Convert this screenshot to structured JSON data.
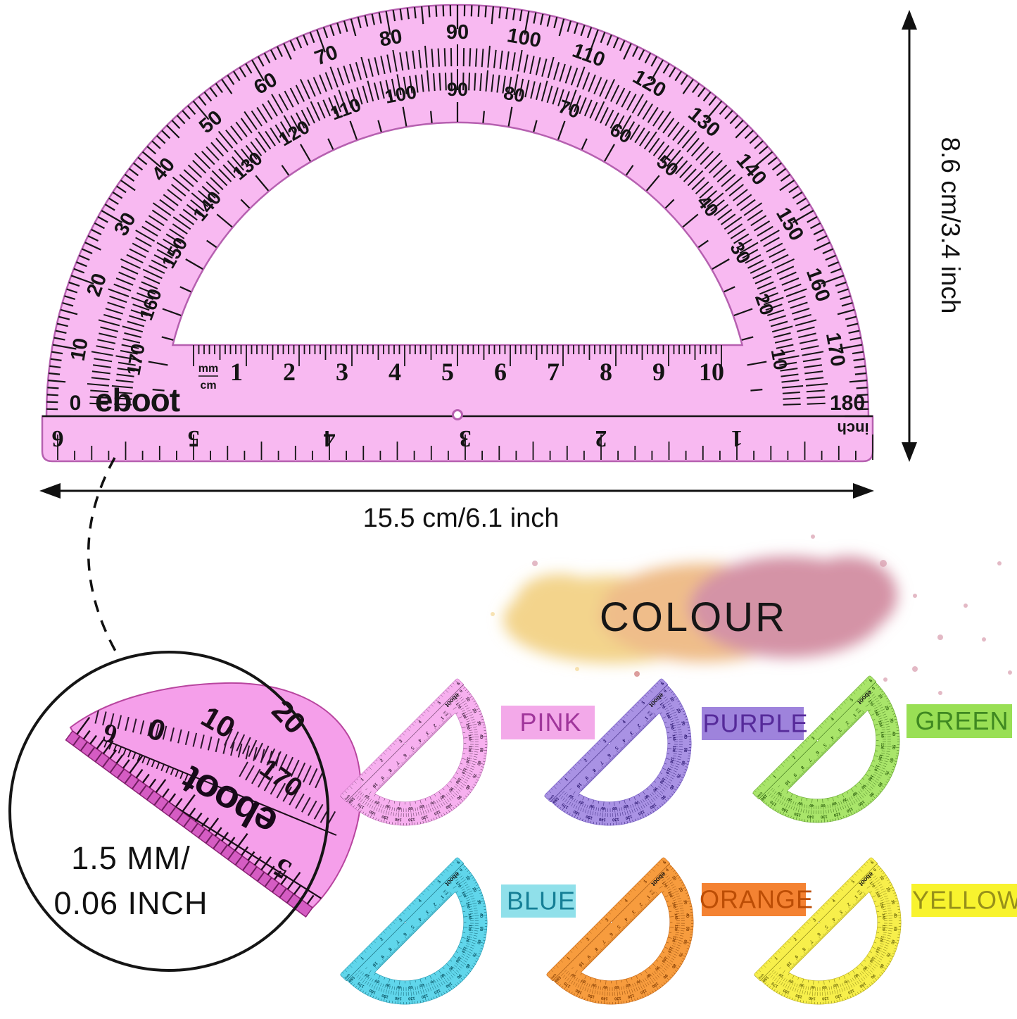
{
  "main_protractor": {
    "brand": "eboot",
    "body_color": "#f7b4f0",
    "edge_color": "#b660b0",
    "ink_color": "#141414",
    "outer_scale_labels": [
      10,
      20,
      30,
      40,
      50,
      60,
      70,
      80,
      90,
      100,
      110,
      120,
      130,
      140,
      150,
      160,
      170
    ],
    "inner_scale_labels": [
      170,
      160,
      150,
      140,
      130,
      120,
      110,
      100,
      90,
      80,
      70,
      60,
      50,
      40,
      30,
      20,
      10
    ],
    "baseline_left_label": "0",
    "baseline_right_label": "180",
    "ruler_unit_top": "mm",
    "ruler_unit_bottom": "cm",
    "cm_labels": [
      "1",
      "2",
      "3",
      "4",
      "5",
      "6",
      "7",
      "8",
      "9",
      "10"
    ],
    "inch_unit_label": "inch",
    "inch_labels": [
      "1",
      "2",
      "3",
      "4",
      "5",
      "6"
    ]
  },
  "dimensions": {
    "height_label": "8.6 cm/3.4 inch",
    "width_label": "15.5 cm/6.1 inch"
  },
  "inset": {
    "line1": "1.5 MM/",
    "line2": "0.06 INCH",
    "brand": "eboot",
    "degree_labels": [
      "0",
      "10",
      "20",
      "170"
    ],
    "inch_labels": [
      "6",
      "5"
    ]
  },
  "colour_section": {
    "title": "COLOUR",
    "splash_colors": [
      "#f3d48c",
      "#efbd8a",
      "#d493a6"
    ],
    "variants": [
      {
        "name": "PINK",
        "body": "#f6aaee",
        "edge": "#c36cba",
        "ink": "#3d1f3b",
        "banner_bg": "#f3a9e9",
        "banner_text": "#a0369b"
      },
      {
        "name": "PURPLE",
        "body": "#a38ae2",
        "edge": "#6a4fc0",
        "ink": "#241069",
        "banner_bg": "#9e83dc",
        "banner_text": "#562a9a"
      },
      {
        "name": "GREEN",
        "body": "#a2e35f",
        "edge": "#5da023",
        "ink": "#2c600e",
        "banner_bg": "#99df55",
        "banner_text": "#3f8821"
      },
      {
        "name": "BLUE",
        "body": "#54d3e9",
        "edge": "#1a93ad",
        "ink": "#074f5f",
        "banner_bg": "#90e0ea",
        "banner_text": "#157f96"
      },
      {
        "name": "ORANGE",
        "body": "#f6952f",
        "edge": "#c05c08",
        "ink": "#803c03",
        "banner_bg": "#f48232",
        "banner_text": "#bc4d05"
      },
      {
        "name": "YELLOW",
        "body": "#f6ee3d",
        "edge": "#b7a912",
        "ink": "#6b660b",
        "banner_bg": "#f8f32e",
        "banner_text": "#97901a"
      }
    ]
  }
}
